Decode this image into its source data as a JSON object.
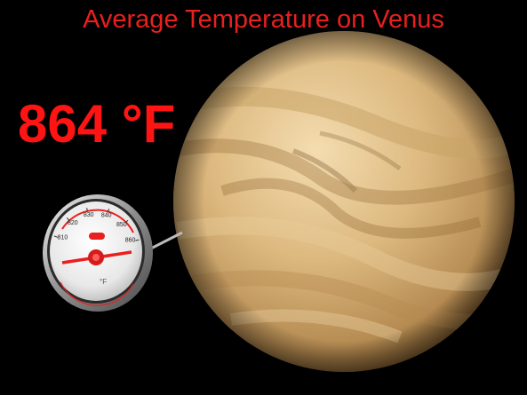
{
  "title": "Average Temperature on Venus",
  "temperature_reading": "864 °F",
  "planet": {
    "name": "Venus",
    "colors": {
      "base": "#d8b57a",
      "highlight": "#f3dcae",
      "shadow": "#8a6536",
      "band": "#a77c48"
    }
  },
  "thermometer": {
    "scale_labels": [
      "810",
      "820",
      "830",
      "840",
      "850",
      "860"
    ],
    "unit": "°F",
    "needle_value": 864,
    "scale_min": 810,
    "scale_max": 860,
    "accent_color": "#e8201f"
  },
  "colors": {
    "title": "#e8201f",
    "reading": "#ff1414",
    "background": "#000000"
  }
}
